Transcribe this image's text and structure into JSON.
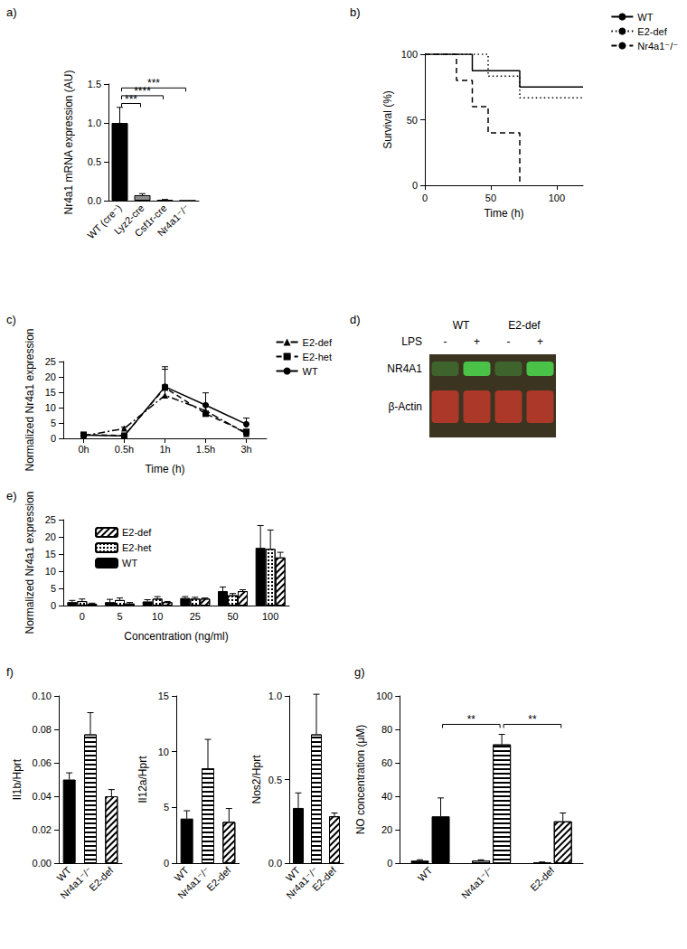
{
  "chart_data": [
    {
      "type": "bar",
      "title": "a)",
      "ylabel": "Nr4a1 mRNA expression (AU)",
      "categories": [
        "WT (cre⁻)",
        "Lyz2-cre",
        "Csf1r-cre",
        "Nr4a1⁻/⁻"
      ],
      "values": [
        1.0,
        0.07,
        0.01,
        0.0
      ],
      "errors": [
        0.2,
        0.02,
        0.005,
        0.0
      ],
      "colors": [
        "#000000",
        "#8c8c8c",
        "#8c8c8c",
        "#8c8c8c"
      ],
      "ylim": [
        0,
        1.5
      ],
      "yticks": [
        {
          "value": 0,
          "label": "0.0"
        },
        {
          "value": 0.5,
          "label": "0.5"
        },
        {
          "value": 1,
          "label": "1.0"
        },
        {
          "value": 1.5,
          "label": "1.5"
        }
      ],
      "grid": false,
      "annotations": [
        {
          "from": "WT (cre⁻)",
          "to": "Lyz2-cre",
          "y": 1.25,
          "text": "***"
        },
        {
          "from": "WT (cre⁻)",
          "to": "Csf1r-cre",
          "y": 1.35,
          "text": "****"
        },
        {
          "from": "WT (cre⁻)",
          "to": "Nr4a1⁻/⁻",
          "y": 1.45,
          "text": "***"
        }
      ]
    },
    {
      "type": "step",
      "title": "b)",
      "xlabel": "Time (h)",
      "ylabel": "Survival (%)",
      "xlim": [
        0,
        120
      ],
      "xticks": [
        0,
        50,
        100
      ],
      "ylim": [
        0,
        100
      ],
      "yticks": [
        0,
        50,
        100
      ],
      "grid": false,
      "legend": "top-right",
      "series": [
        {
          "name": "WT",
          "color": "#000000",
          "line_style": "solid",
          "x": [
            0,
            36,
            72,
            120
          ],
          "values": [
            100,
            87.5,
            75,
            75
          ]
        },
        {
          "name": "E2-def",
          "color": "#000000",
          "line_style": "dotted",
          "x": [
            0,
            48,
            72,
            120
          ],
          "values": [
            100,
            83.3,
            66.7,
            66.7
          ]
        },
        {
          "name": "Nr4a1⁻/⁻",
          "color": "#000000",
          "line_style": "dashed",
          "x": [
            0,
            24,
            36,
            48,
            72
          ],
          "values": [
            100,
            80,
            60,
            40,
            0
          ]
        }
      ]
    },
    {
      "type": "line",
      "title": "c)",
      "xlabel": "Time (h)",
      "ylabel": "Normalized Nr4a1 expression",
      "categories": [
        "0h",
        "0.5h",
        "1h",
        "1.5h",
        "3h"
      ],
      "ylim": [
        0,
        25
      ],
      "yticks": [
        0,
        5,
        10,
        15,
        20,
        25
      ],
      "grid": false,
      "legend": "top-right",
      "series": [
        {
          "name": "E2-def",
          "color": "#000000",
          "marker": "triangle",
          "line_style": "dashdot",
          "values": [
            0.8,
            3.2,
            14,
            9,
            1.5
          ],
          "errors": [
            0.2,
            0.5,
            3,
            1.5,
            0.6
          ]
        },
        {
          "name": "E2-het",
          "color": "#000000",
          "marker": "square",
          "line_style": "dashed",
          "values": [
            1.2,
            0.9,
            16.5,
            8,
            2
          ],
          "errors": [
            0.3,
            0.2,
            6,
            3,
            1
          ]
        },
        {
          "name": "WT",
          "color": "#000000",
          "marker": "circle",
          "line_style": "solid",
          "values": [
            1,
            0.8,
            16.8,
            10.8,
            4.6
          ],
          "errors": [
            0.4,
            0.3,
            6.5,
            4,
            2
          ]
        }
      ]
    },
    {
      "type": "blot",
      "title": "d)",
      "groups": [
        "WT",
        "E2-def"
      ],
      "row_label": "LPS",
      "lanes": [
        "-",
        "+",
        "-",
        "+"
      ],
      "bands": [
        "NR4A1",
        "β-Actin"
      ]
    },
    {
      "type": "bar",
      "title": "e)",
      "xlabel": "Concentration (ng/ml)",
      "ylabel": "Normalized Nr4a1 expression",
      "categories": [
        "0",
        "5",
        "10",
        "25",
        "50",
        "100"
      ],
      "ylim": [
        0,
        25
      ],
      "yticks": [
        0,
        5,
        10,
        15,
        20,
        25
      ],
      "grid": false,
      "legend": "top-left",
      "series": [
        {
          "name": "WT",
          "color": "#000000",
          "marker": "solid",
          "values": [
            1,
            1,
            1.2,
            2.2,
            4.2,
            16.8
          ],
          "errors": [
            0.5,
            0.8,
            0.5,
            0.4,
            1.2,
            6.5
          ]
        },
        {
          "name": "E2-het",
          "color": "#ffffff",
          "marker": "checkered",
          "values": [
            1.3,
            1.6,
            2,
            2,
            3,
            16.5
          ],
          "errors": [
            0.6,
            0.6,
            0.6,
            0.4,
            0.5,
            5.5
          ]
        },
        {
          "name": "E2-def",
          "color": "#ffffff",
          "marker": "hatch",
          "values": [
            0.5,
            0.6,
            1,
            2,
            4.2,
            14
          ],
          "errors": [
            0.2,
            0.3,
            0.2,
            0.2,
            0.4,
            1.5
          ]
        }
      ]
    },
    {
      "type": "bar",
      "title": "f)",
      "ylabel": "Il1b/Hprt",
      "categories": [
        "WT",
        "Nr4a1⁻/⁻",
        "E2-def"
      ],
      "values": [
        0.05,
        0.077,
        0.04
      ],
      "errors": [
        0.004,
        0.013,
        0.004
      ],
      "colors": [
        "#000000",
        "#ffffff",
        "#ffffff"
      ],
      "marker": [
        "solid",
        "stripes",
        "hatch"
      ],
      "ylim": [
        0,
        0.1
      ],
      "yticks": [
        {
          "value": 0,
          "label": "0.00"
        },
        {
          "value": 0.02,
          "label": "0.02"
        },
        {
          "value": 0.04,
          "label": "0.04"
        },
        {
          "value": 0.06,
          "label": "0.06"
        },
        {
          "value": 0.08,
          "label": "0.08"
        },
        {
          "value": 0.1,
          "label": "0.10"
        }
      ],
      "grid": false
    },
    {
      "type": "bar",
      "ylabel": "Il12a/Hprt",
      "categories": [
        "WT",
        "Nr4a1⁻/⁻",
        "E2-def"
      ],
      "values": [
        4.0,
        8.5,
        3.7
      ],
      "errors": [
        0.7,
        2.6,
        1.2
      ],
      "colors": [
        "#000000",
        "#ffffff",
        "#ffffff"
      ],
      "marker": [
        "solid",
        "stripes",
        "hatch"
      ],
      "ylim": [
        0,
        15
      ],
      "yticks": [
        0,
        5,
        10,
        15
      ],
      "grid": false
    },
    {
      "type": "bar",
      "ylabel": "Nos2/Hprt",
      "categories": [
        "WT",
        "Nr4a1⁻/⁻",
        "E2-def"
      ],
      "values": [
        0.33,
        0.77,
        0.28
      ],
      "errors": [
        0.09,
        0.24,
        0.02
      ],
      "colors": [
        "#000000",
        "#ffffff",
        "#ffffff"
      ],
      "marker": [
        "solid",
        "stripes",
        "hatch"
      ],
      "ylim": [
        0,
        1
      ],
      "yticks": [
        {
          "value": 0,
          "label": "0.0"
        },
        {
          "value": 0.5,
          "label": "0.5"
        },
        {
          "value": 1,
          "label": "1.0"
        }
      ],
      "grid": false
    },
    {
      "type": "bar",
      "title": "g)",
      "ylabel": "NO concentration (μM)",
      "categories": [
        "WT",
        "Nr4a1⁻/⁻",
        "E2-def"
      ],
      "colors": [
        "#000000",
        "#ffffff",
        "#ffffff"
      ],
      "marker": [
        "solid",
        "stripes",
        "hatch"
      ],
      "series": [
        {
          "values": [
            1.5,
            1.5,
            0.5
          ],
          "errors": [
            0.5,
            0.5,
            0.2
          ]
        },
        {
          "values": [
            28,
            71,
            25
          ],
          "errors": [
            11,
            6,
            5
          ]
        }
      ],
      "ylim": [
        0,
        100
      ],
      "yticks": [
        0,
        20,
        40,
        60,
        80,
        100
      ],
      "grid": false,
      "annotations": [
        {
          "from": "WT",
          "to": "Nr4a1⁻/⁻",
          "y": 83,
          "text": "**"
        },
        {
          "from": "Nr4a1⁻/⁻",
          "to": "E2-def",
          "y": 83,
          "text": "**"
        }
      ]
    }
  ]
}
